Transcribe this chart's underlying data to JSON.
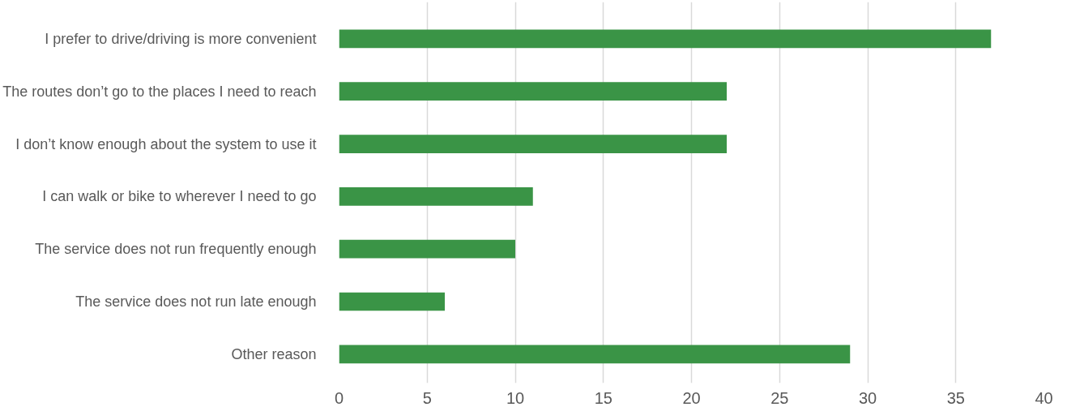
{
  "chart_data": {
    "type": "bar",
    "orientation": "horizontal",
    "categories": [
      "I prefer to drive/driving is more convenient",
      "The routes don’t go to the places I need to reach",
      "I don’t know enough about the system to use it",
      "I can walk or bike to wherever I need to go",
      "The service does not run frequently enough",
      "The service does not run late enough",
      "Other reason"
    ],
    "values": [
      37,
      22,
      22,
      11,
      10,
      6,
      29
    ],
    "color": "#3a9446",
    "xlim": [
      0,
      40
    ],
    "xticks": [
      0,
      5,
      10,
      15,
      20,
      25,
      30,
      35,
      40
    ],
    "grid": "x"
  }
}
